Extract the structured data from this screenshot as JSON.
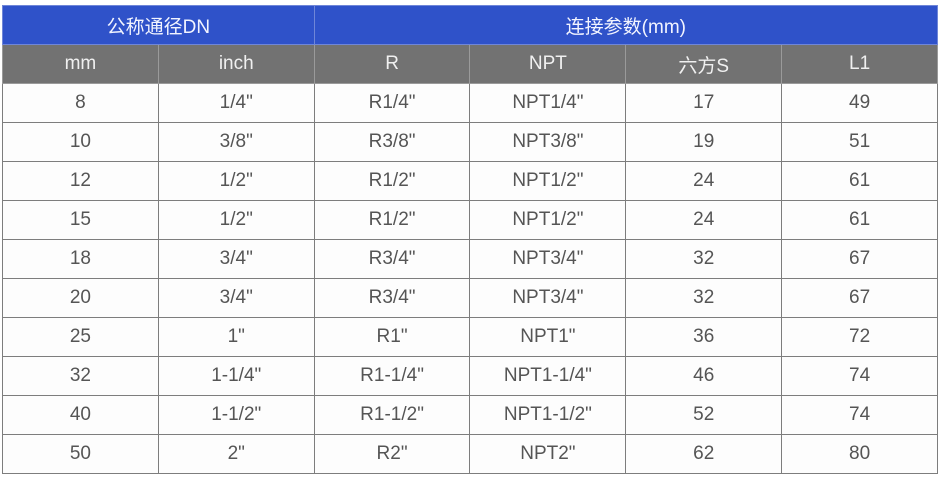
{
  "header_groups": [
    {
      "label": "公称通径DN",
      "span": 2
    },
    {
      "label": "连接参数(mm)",
      "span": 4
    }
  ],
  "columns": [
    "mm",
    "inch",
    "R",
    "NPT",
    "六方S",
    "L1"
  ],
  "colors": {
    "group_header_bg": "#2f52c9",
    "column_header_bg": "#727272"
  },
  "rows": [
    [
      "8",
      "1/4\"",
      "R1/4\"",
      "NPT1/4\"",
      "17",
      "49"
    ],
    [
      "10",
      "3/8\"",
      "R3/8\"",
      "NPT3/8\"",
      "19",
      "51"
    ],
    [
      "12",
      "1/2\"",
      "R1/2\"",
      "NPT1/2\"",
      "24",
      "61"
    ],
    [
      "15",
      "1/2\"",
      "R1/2\"",
      "NPT1/2\"",
      "24",
      "61"
    ],
    [
      "18",
      "3/4\"",
      "R3/4\"",
      "NPT3/4\"",
      "32",
      "67"
    ],
    [
      "20",
      "3/4\"",
      "R3/4\"",
      "NPT3/4\"",
      "32",
      "67"
    ],
    [
      "25",
      "1\"",
      "R1\"",
      "NPT1\"",
      "36",
      "72"
    ],
    [
      "32",
      "1-1/4\"",
      "R1-1/4\"",
      "NPT1-1/4\"",
      "46",
      "74"
    ],
    [
      "40",
      "1-1/2\"",
      "R1-1/2\"",
      "NPT1-1/2\"",
      "52",
      "74"
    ],
    [
      "50",
      "2\"",
      "R2\"",
      "NPT2\"",
      "62",
      "80"
    ]
  ]
}
